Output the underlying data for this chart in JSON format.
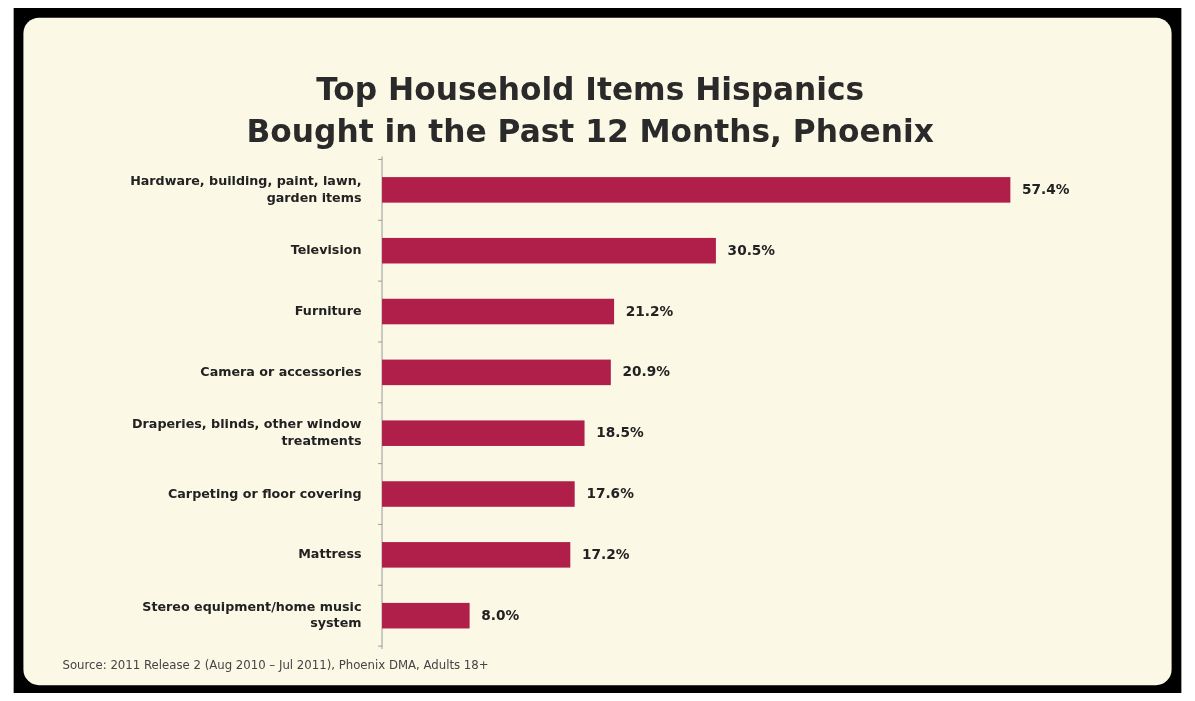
{
  "chart_data": {
    "type": "bar",
    "orientation": "horizontal",
    "title": "Top Household Items Hispanics\nBought in the Past 12 Months, Phoenix",
    "categories": [
      "Hardware, building, paint, lawn,\ngarden items",
      "Television",
      "Furniture",
      "Camera or accessories",
      "Draperies, blinds, other window\ntreatments",
      "Carpeting or floor covering",
      "Mattress",
      "Stereo equipment/home music\nsystem"
    ],
    "values": [
      57.4,
      30.5,
      21.2,
      20.9,
      18.5,
      17.6,
      17.2,
      8.0
    ],
    "value_labels": [
      "57.4%",
      "30.5%",
      "21.2%",
      "20.9%",
      "18.5%",
      "17.6%",
      "17.2%",
      "8.0%"
    ],
    "color": "#b01e4a",
    "annotations": [
      "Source: 2011 Release 2 (Aug 2010 – Jul 2011), Phoenix DMA, Adults 18+"
    ]
  }
}
